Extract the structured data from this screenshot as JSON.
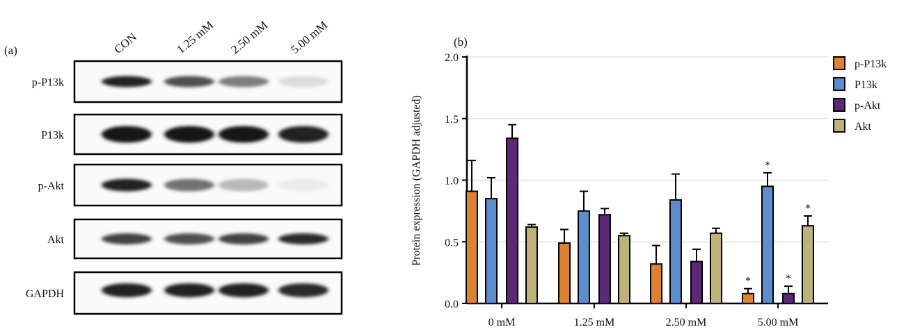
{
  "panel_a": {
    "label": "(a)",
    "lanes": [
      "CON",
      "1.25 mM",
      "2.50 mM",
      "5.00 mM"
    ],
    "rows": [
      "p-P13k",
      "P13k",
      "p-Akt",
      "Akt",
      "GAPDH"
    ]
  },
  "chart_data": {
    "type": "bar",
    "panel_label": "(b)",
    "categories": [
      "0 mM",
      "1.25 mM",
      "2.50 mM",
      "5.00 mM"
    ],
    "ylabel": "Protein expression (GAPDH adjusted)",
    "xlabel": "",
    "ylim": [
      0,
      2.0
    ],
    "yticks": [
      "0.0",
      "0.5",
      "1.0",
      "1.5",
      "2.0"
    ],
    "grid": true,
    "legend_position": "top-right",
    "series": [
      {
        "name": "p-P13k",
        "color": "#E0822B",
        "values": [
          0.91,
          0.49,
          0.32,
          0.08
        ],
        "errors": [
          0.25,
          0.11,
          0.15,
          0.04
        ],
        "significant": [
          false,
          false,
          false,
          true
        ]
      },
      {
        "name": "P13k",
        "color": "#5A8ED0",
        "values": [
          0.85,
          0.75,
          0.84,
          0.95
        ],
        "errors": [
          0.17,
          0.16,
          0.21,
          0.11
        ],
        "significant": [
          false,
          false,
          false,
          true
        ]
      },
      {
        "name": "p-Akt",
        "color": "#5E2878",
        "values": [
          1.34,
          0.72,
          0.34,
          0.08
        ],
        "errors": [
          0.11,
          0.05,
          0.1,
          0.06
        ],
        "significant": [
          false,
          false,
          false,
          true
        ]
      },
      {
        "name": "Akt",
        "color": "#BFB277",
        "values": [
          0.62,
          0.55,
          0.57,
          0.63
        ],
        "errors": [
          0.02,
          0.02,
          0.04,
          0.08
        ],
        "significant": [
          false,
          false,
          false,
          true
        ]
      }
    ],
    "significance_marker": "*"
  }
}
